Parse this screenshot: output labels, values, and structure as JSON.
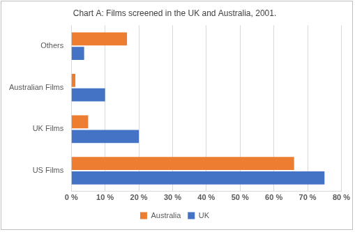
{
  "chart_data": {
    "type": "bar",
    "title": "Chart A: Films screened in the UK and Australia, 2001.",
    "orientation": "horizontal",
    "categories": [
      "Others",
      "Australian Films",
      "UK Films",
      "US Films"
    ],
    "series": [
      {
        "name": "Australia",
        "color": "#ed7d31",
        "values": [
          16.5,
          1.2,
          5,
          66
        ]
      },
      {
        "name": "UK",
        "color": "#4472c4",
        "values": [
          3.8,
          10,
          20,
          75
        ]
      }
    ],
    "xlim": [
      0,
      80
    ],
    "xticks": [
      {
        "value": 0,
        "label": "0 %"
      },
      {
        "value": 10,
        "label": "10 %"
      },
      {
        "value": 20,
        "label": "20 %"
      },
      {
        "value": 30,
        "label": "30 %"
      },
      {
        "value": 40,
        "label": "40 %"
      },
      {
        "value": 50,
        "label": "50 %"
      },
      {
        "value": 60,
        "label": "60 %"
      },
      {
        "value": 70,
        "label": "70 %"
      },
      {
        "value": 80,
        "label": "80 %"
      }
    ],
    "grid": true,
    "legend": "bottom"
  }
}
